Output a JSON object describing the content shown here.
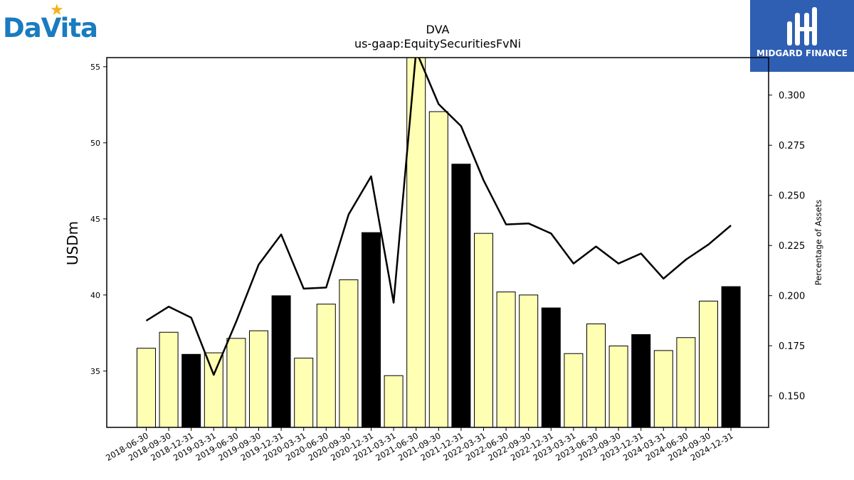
{
  "logos": {
    "left": {
      "text": "DaVita",
      "color": "#1a7bbf",
      "star_color": "#f2b21b"
    },
    "right": {
      "text": "MIDGARD FINANCE",
      "bg_color": "#2f5fb3"
    }
  },
  "chart_data": {
    "type": "bar",
    "title": "DVA",
    "subtitle": "us-gaap:EquitySecuritiesFvNi",
    "ylabel": "USDm",
    "y2label": "Percentage of Assets",
    "ylim": [
      31.3,
      55.6
    ],
    "y2lim": [
      0.1343,
      0.3187
    ],
    "yticks": [
      "35",
      "40",
      "45",
      "50",
      "55"
    ],
    "y2ticks": [
      "0.150",
      "0.175",
      "0.200",
      "0.225",
      "0.250",
      "0.275",
      "0.300"
    ],
    "categories": [
      "2018-06-30",
      "2018-09-30",
      "2018-12-31",
      "2019-03-31",
      "2019-06-30",
      "2019-09-30",
      "2019-12-31",
      "2020-03-31",
      "2020-06-30",
      "2020-09-30",
      "2020-12-31",
      "2021-03-31",
      "2021-06-30",
      "2021-09-30",
      "2021-12-31",
      "2022-03-31",
      "2022-06-30",
      "2022-09-30",
      "2022-12-31",
      "2023-03-31",
      "2023-06-30",
      "2023-09-30",
      "2023-12-31",
      "2024-03-31",
      "2024-06-30",
      "2024-09-30",
      "2024-12-31"
    ],
    "series": [
      {
        "type": "bar",
        "values": [
          36.5,
          37.55,
          36.1,
          36.2,
          37.15,
          37.65,
          39.95,
          35.85,
          39.4,
          41.0,
          44.1,
          34.7,
          55.8,
          52.05,
          48.6,
          44.05,
          40.2,
          40.0,
          39.15,
          36.15,
          38.1,
          36.65,
          37.4,
          36.35,
          37.2,
          39.6,
          40.55
        ],
        "highlight": [
          false,
          false,
          true,
          false,
          false,
          false,
          true,
          false,
          false,
          false,
          true,
          false,
          false,
          false,
          true,
          false,
          false,
          false,
          true,
          false,
          false,
          false,
          true,
          false,
          false,
          false,
          true
        ],
        "color": "#ffffb3",
        "highlight_color": "#000000"
      },
      {
        "type": "line",
        "axis": "right",
        "values": [
          0.1875,
          0.1945,
          0.189,
          0.1605,
          0.187,
          0.2155,
          0.2305,
          0.2035,
          0.204,
          0.2405,
          0.2595,
          0.1965,
          0.322,
          0.2955,
          0.2845,
          0.2575,
          0.2355,
          0.236,
          0.231,
          0.216,
          0.2245,
          0.216,
          0.221,
          0.2085,
          0.218,
          0.2255,
          0.235
        ],
        "color": "#000000"
      }
    ],
    "grid": false
  }
}
